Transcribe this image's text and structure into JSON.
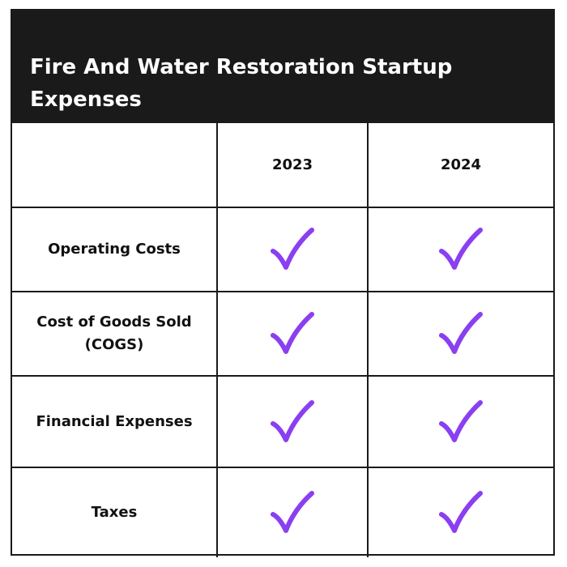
{
  "title": "Fire And Water Restoration Startup Expenses",
  "columns": [
    "",
    "2023",
    "2024"
  ],
  "rows": [
    {
      "label": "Operating Costs",
      "y2023": "check-icon",
      "y2024": "check-icon"
    },
    {
      "label": "Cost of Goods Sold (COGS)",
      "y2023": "check-icon",
      "y2024": "check-icon"
    },
    {
      "label": "Financial Expenses",
      "y2023": "check-icon",
      "y2024": "check-icon"
    },
    {
      "label": "Taxes",
      "y2023": "check-icon",
      "y2024": "check-icon"
    }
  ],
  "colors": {
    "header_bg": "#1a1a1a",
    "header_text": "#ffffff",
    "check": "#8a3ff0",
    "border": "#1a1a1a"
  }
}
